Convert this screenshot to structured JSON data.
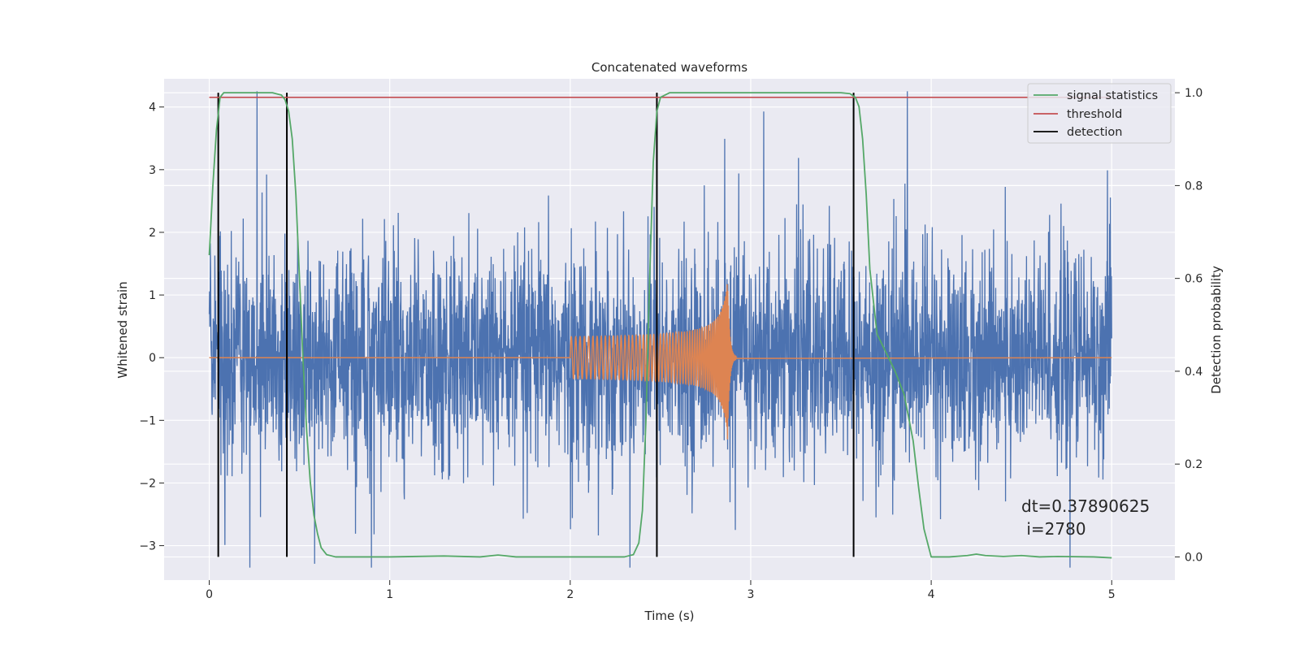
{
  "chart_data": {
    "type": "line",
    "title": "Concatenated waveforms",
    "xlabel": "Time (s)",
    "ylabel": "Whitened strain",
    "y2label": "Detection probability",
    "xlim": [
      -0.25,
      5.35
    ],
    "ylim": [
      -3.55,
      4.45
    ],
    "y2lim": [
      -0.05,
      1.03
    ],
    "grid": true,
    "legend_position": "top-right",
    "xticks": [
      0,
      1,
      2,
      3,
      4,
      5
    ],
    "yticks": [
      -3,
      -2,
      -1,
      0,
      1,
      2,
      3,
      4
    ],
    "y2ticks": [
      0.0,
      0.2,
      0.4,
      0.6,
      0.8,
      1.0
    ],
    "xtick_labels": [
      "0",
      "1",
      "2",
      "3",
      "4",
      "5"
    ],
    "ytick_labels": [
      "−3",
      "−2",
      "−1",
      "0",
      "1",
      "2",
      "3",
      "4"
    ],
    "y2tick_labels": [
      "0.0",
      "0.2",
      "0.4",
      "0.6",
      "0.8",
      "1.0"
    ],
    "colors": {
      "background": "#eaeaf2",
      "noise": "#4c72b0",
      "waveform": "#dd8452",
      "signal_statistics": "#55a868",
      "threshold": "#c44e52",
      "detection": "#000000"
    },
    "series": [
      {
        "name": "",
        "color": "#4c72b0",
        "axis": "left",
        "style": "noise",
        "x_range": [
          0,
          5
        ],
        "typical_amplitude": 1.1,
        "min": -3.35,
        "max": 4.25
      },
      {
        "name": "",
        "color": "#dd8452",
        "axis": "left",
        "style": "chirp",
        "x_range": [
          0,
          5
        ],
        "chirp_start": 2.0,
        "chirp_merger": 2.87,
        "chirp_end": 2.92,
        "amplitude_start": 0.3,
        "amplitude_peak": 1.45
      },
      {
        "name": "signal statistics",
        "color": "#55a868",
        "axis": "right",
        "x": [
          0,
          0.02,
          0.04,
          0.06,
          0.08,
          0.1,
          0.2,
          0.35,
          0.4,
          0.42,
          0.44,
          0.46,
          0.48,
          0.5,
          0.52,
          0.54,
          0.56,
          0.58,
          0.6,
          0.62,
          0.65,
          0.7,
          1.0,
          1.3,
          1.5,
          1.6,
          1.7,
          2.0,
          2.3,
          2.35,
          2.38,
          2.4,
          2.42,
          2.44,
          2.46,
          2.48,
          2.5,
          2.55,
          2.7,
          3.4,
          3.5,
          3.55,
          3.58,
          3.6,
          3.62,
          3.64,
          3.66,
          3.7,
          3.75,
          3.8,
          3.85,
          3.9,
          3.93,
          3.96,
          4.0,
          4.1,
          4.2,
          4.25,
          4.3,
          4.4,
          4.5,
          4.6,
          4.7,
          4.9,
          5.0
        ],
        "y": [
          0.65,
          0.8,
          0.92,
          0.99,
          1.0,
          1.0,
          1.0,
          1.0,
          0.995,
          0.985,
          0.96,
          0.9,
          0.78,
          0.6,
          0.42,
          0.27,
          0.16,
          0.09,
          0.05,
          0.02,
          0.005,
          0.0,
          0.0,
          0.002,
          0.0,
          0.004,
          0.0,
          0.0,
          0.0,
          0.005,
          0.03,
          0.1,
          0.3,
          0.6,
          0.85,
          0.96,
          0.99,
          1.0,
          1.0,
          1.0,
          1.0,
          0.998,
          0.99,
          0.97,
          0.9,
          0.78,
          0.62,
          0.48,
          0.44,
          0.4,
          0.35,
          0.25,
          0.15,
          0.06,
          0.0,
          0.0,
          0.003,
          0.006,
          0.003,
          0.001,
          0.003,
          0.0,
          0.001,
          0.0,
          -0.002
        ]
      },
      {
        "name": "threshold",
        "color": "#c44e52",
        "axis": "right",
        "x": [
          0,
          5
        ],
        "y": [
          0.99,
          0.99
        ]
      },
      {
        "name": "detection",
        "color": "#000000",
        "axis": "right",
        "type": "vlines",
        "x": [
          0.05,
          0.43,
          2.48,
          3.57
        ],
        "y_range": [
          0.0,
          1.0
        ]
      }
    ],
    "annotation": {
      "line1": "dt=0.37890625",
      "line2": " i=2780"
    }
  }
}
